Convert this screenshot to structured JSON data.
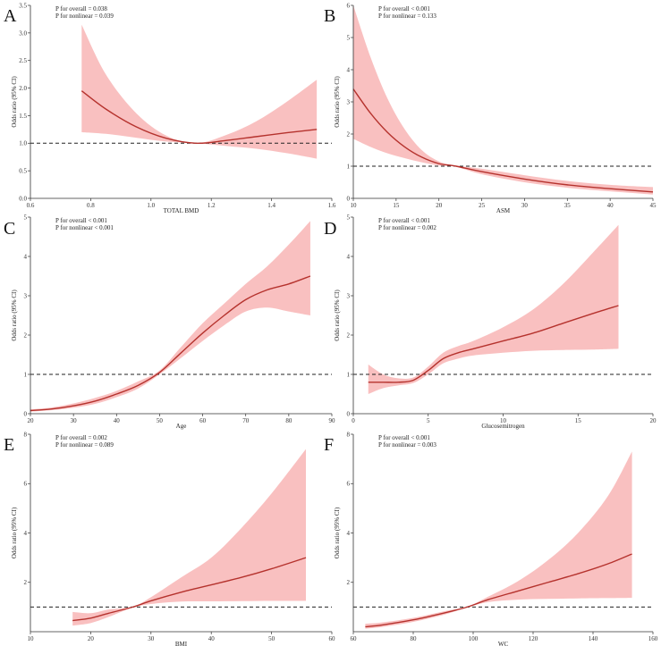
{
  "figure": {
    "chart_data": [
      {
        "type": "line",
        "panel": "A",
        "xlabel": "TOTAL BMD",
        "ylabel": "Odds ratio (95% CI)",
        "xlim": [
          0.6,
          1.6
        ],
        "ylim": [
          0,
          3.5
        ],
        "xticks": [
          0.6,
          0.8,
          1.0,
          1.2,
          1.4,
          1.6
        ],
        "xtick_labels": [
          "0.6",
          "0.8",
          "1.0",
          "1.2",
          "1.4",
          "1.6"
        ],
        "yticks": [
          0,
          0.5,
          1.0,
          1.5,
          2.0,
          2.5,
          3.0,
          3.5
        ],
        "ytick_labels": [
          "0.0",
          "0.5",
          "1.0",
          "1.5",
          "2.0",
          "2.5",
          "3.0",
          "3.5"
        ],
        "reference": 1,
        "annotations": [
          "P for overall = 0.038",
          "P for nonlinear = 0.039"
        ],
        "series": [
          {
            "name": "Odds ratio",
            "x": [
              0.77,
              0.85,
              0.95,
              1.05,
              1.15,
              1.25,
              1.35,
              1.45,
              1.55
            ],
            "y": [
              1.95,
              1.62,
              1.3,
              1.09,
              1.0,
              1.05,
              1.12,
              1.19,
              1.25
            ],
            "lower": [
              1.2,
              1.17,
              1.1,
              1.03,
              1.0,
              0.95,
              0.9,
              0.82,
              0.72
            ],
            "upper": [
              3.15,
              2.25,
              1.55,
              1.14,
              1.0,
              1.15,
              1.4,
              1.75,
              2.15
            ]
          }
        ]
      },
      {
        "type": "line",
        "panel": "B",
        "xlabel": "ASM",
        "ylabel": "Odds ratio (95% CI)",
        "xlim": [
          10,
          45
        ],
        "ylim": [
          0,
          6
        ],
        "xticks": [
          10,
          15,
          20,
          25,
          30,
          35,
          40,
          45
        ],
        "xtick_labels": [
          "10",
          "15",
          "20",
          "25",
          "30",
          "35",
          "40",
          "45"
        ],
        "yticks": [
          0,
          1,
          2,
          3,
          4,
          5,
          6
        ],
        "ytick_labels": [
          "0",
          "1",
          "2",
          "3",
          "4",
          "5",
          "6"
        ],
        "reference": 1,
        "annotations": [
          "P for overall < 0.001",
          "P for nonlinear = 0.133"
        ],
        "series": [
          {
            "name": "Odds ratio",
            "x": [
              10,
              12,
              14,
              16,
              18,
              20,
              22,
              25,
              30,
              35,
              40,
              45
            ],
            "y": [
              3.4,
              2.65,
              2.05,
              1.6,
              1.28,
              1.08,
              1.0,
              0.83,
              0.6,
              0.42,
              0.3,
              0.2
            ],
            "lower": [
              1.85,
              1.6,
              1.4,
              1.25,
              1.12,
              1.02,
              0.98,
              0.75,
              0.5,
              0.33,
              0.22,
              0.12
            ],
            "upper": [
              6.0,
              4.4,
              3.1,
              2.15,
              1.5,
              1.15,
              1.02,
              0.92,
              0.72,
              0.54,
              0.42,
              0.35
            ]
          }
        ]
      },
      {
        "type": "line",
        "panel": "C",
        "xlabel": "Age",
        "ylabel": "Odds ratio (95% CI)",
        "xlim": [
          20,
          90
        ],
        "ylim": [
          0,
          5
        ],
        "xticks": [
          20,
          30,
          40,
          50,
          60,
          70,
          80,
          90
        ],
        "xtick_labels": [
          "20",
          "30",
          "40",
          "50",
          "60",
          "70",
          "80",
          "90"
        ],
        "yticks": [
          0,
          1,
          2,
          3,
          4,
          5
        ],
        "ytick_labels": [
          "0",
          "1",
          "2",
          "3",
          "4",
          "5"
        ],
        "reference": 1,
        "annotations": [
          "P for overall < 0.001",
          "P for nonlinear < 0.001"
        ],
        "series": [
          {
            "name": "Odds ratio",
            "x": [
              20,
              25,
              30,
              35,
              40,
              45,
              50,
              55,
              60,
              65,
              70,
              75,
              80,
              85
            ],
            "y": [
              0.08,
              0.12,
              0.2,
              0.32,
              0.5,
              0.72,
              1.05,
              1.55,
              2.05,
              2.5,
              2.9,
              3.15,
              3.3,
              3.5
            ],
            "lower": [
              0.05,
              0.09,
              0.15,
              0.25,
              0.42,
              0.64,
              1.0,
              1.42,
              1.85,
              2.25,
              2.6,
              2.7,
              2.6,
              2.5
            ],
            "upper": [
              0.11,
              0.16,
              0.26,
              0.4,
              0.58,
              0.82,
              1.1,
              1.7,
              2.3,
              2.8,
              3.3,
              3.75,
              4.3,
              4.9
            ]
          }
        ]
      },
      {
        "type": "line",
        "panel": "D",
        "xlabel": "Glucosemitrogen",
        "ylabel": "Odds ratio (95% CI)",
        "xlim": [
          0,
          20
        ],
        "ylim": [
          0,
          5
        ],
        "xticks": [
          0,
          5,
          10,
          15,
          20
        ],
        "xtick_labels": [
          "0",
          "5",
          "10",
          "15",
          "20"
        ],
        "yticks": [
          0,
          1,
          2,
          3,
          4,
          5
        ],
        "ytick_labels": [
          "0",
          "1",
          "2",
          "3",
          "4",
          "5"
        ],
        "reference": 1,
        "annotations": [
          "P for overall < 0.001",
          "P for nonlinear = 0.002"
        ],
        "series": [
          {
            "name": "Odds ratio",
            "x": [
              1,
              2,
              3,
              4,
              5,
              6,
              7,
              8,
              10,
              12,
              14,
              16,
              17.7
            ],
            "y": [
              0.8,
              0.8,
              0.8,
              0.85,
              1.1,
              1.4,
              1.55,
              1.65,
              1.85,
              2.05,
              2.3,
              2.55,
              2.75
            ],
            "lower": [
              0.5,
              0.65,
              0.72,
              0.78,
              1.0,
              1.28,
              1.4,
              1.48,
              1.55,
              1.6,
              1.62,
              1.63,
              1.65
            ],
            "upper": [
              1.25,
              1.0,
              0.9,
              0.92,
              1.2,
              1.55,
              1.72,
              1.85,
              2.2,
              2.65,
              3.3,
              4.1,
              4.8
            ]
          }
        ]
      },
      {
        "type": "line",
        "panel": "E",
        "xlabel": "BMI",
        "ylabel": "Odds ratio (95% CI)",
        "xlim": [
          10,
          60
        ],
        "ylim": [
          0,
          8
        ],
        "xticks": [
          10,
          20,
          30,
          40,
          50,
          60
        ],
        "xtick_labels": [
          "10",
          "20",
          "30",
          "40",
          "50",
          "60"
        ],
        "yticks": [
          2,
          4,
          6,
          8
        ],
        "ytick_labels": [
          "2",
          "4",
          "6",
          "8"
        ],
        "reference": 1,
        "annotations": [
          "P for overall = 0.002",
          "P for nonlinear = 0.089"
        ],
        "series": [
          {
            "name": "Odds ratio",
            "x": [
              17,
              20,
              23,
              27,
              30,
              35,
              40,
              45,
              50,
              55.7
            ],
            "y": [
              0.45,
              0.55,
              0.75,
              1.0,
              1.25,
              1.6,
              1.9,
              2.2,
              2.55,
              3.0
            ],
            "lower": [
              0.25,
              0.35,
              0.6,
              0.98,
              1.12,
              1.22,
              1.23,
              1.24,
              1.25,
              1.25
            ],
            "upper": [
              0.8,
              0.75,
              0.9,
              1.02,
              1.4,
              2.2,
              3.0,
              4.2,
              5.6,
              7.4
            ]
          }
        ]
      },
      {
        "type": "line",
        "panel": "F",
        "xlabel": "WC",
        "ylabel": "Odds ratio (95% CI)",
        "xlim": [
          60,
          160
        ],
        "ylim": [
          0,
          8
        ],
        "xticks": [
          60,
          80,
          100,
          120,
          140,
          160
        ],
        "xtick_labels": [
          "60",
          "80",
          "100",
          "120",
          "140",
          "160"
        ],
        "yticks": [
          2,
          4,
          6,
          8
        ],
        "ytick_labels": [
          "2",
          "4",
          "6",
          "8"
        ],
        "reference": 1,
        "annotations": [
          "P for overall < 0.001",
          "P for nonlinear = 0.003"
        ],
        "series": [
          {
            "name": "Odds ratio",
            "x": [
              64,
              70,
              80,
              90,
              98,
              105,
              115,
              125,
              135,
              145,
              153
            ],
            "y": [
              0.2,
              0.28,
              0.48,
              0.75,
              1.0,
              1.3,
              1.65,
              2.0,
              2.35,
              2.75,
              3.15
            ],
            "lower": [
              0.12,
              0.2,
              0.4,
              0.68,
              0.98,
              1.2,
              1.3,
              1.33,
              1.35,
              1.36,
              1.37
            ],
            "upper": [
              0.32,
              0.38,
              0.56,
              0.82,
              1.02,
              1.42,
              2.05,
              2.9,
              4.0,
              5.5,
              7.3
            ]
          }
        ]
      }
    ]
  }
}
